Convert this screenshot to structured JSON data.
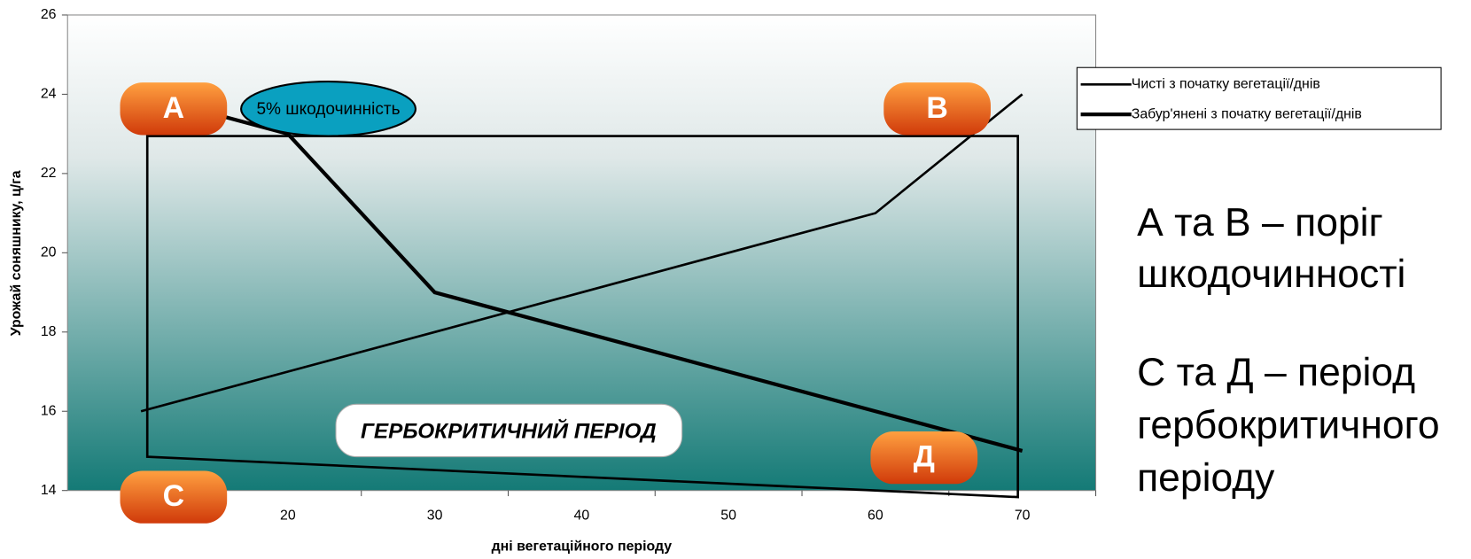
{
  "chart_data": {
    "type": "line",
    "categories": [
      null,
      "20",
      "30",
      "40",
      "50",
      "60",
      "70"
    ],
    "series": [
      {
        "name": "Чисті з початку вегетації/днів",
        "color": "#000000",
        "width": 2.5,
        "values": [
          16,
          17,
          18,
          19,
          20,
          21,
          24
        ]
      },
      {
        "name": "Забур'янені з початку вегетації/днів",
        "color": "#000000",
        "width": 4,
        "values": [
          24,
          23,
          19,
          18,
          17,
          16,
          15
        ]
      }
    ],
    "ylim": [
      14,
      26
    ],
    "yticks": [
      14,
      16,
      18,
      20,
      22,
      24,
      26
    ],
    "y_label": "Урожай соняшнику, ц/га",
    "x_label": "дні вегетаційного періоду",
    "legend": "right",
    "annotations": {
      "a": "А",
      "b": "В",
      "c": "С",
      "d": "Д",
      "bubble": "5% шкодочинність",
      "period": "ГЕРБОКРИТИЧНИЙ  ПЕРІОД"
    },
    "notes": [
      "А та В – поріг",
      "шкодочинності",
      "С та Д – період",
      "гербокритичного",
      "періоду"
    ]
  }
}
